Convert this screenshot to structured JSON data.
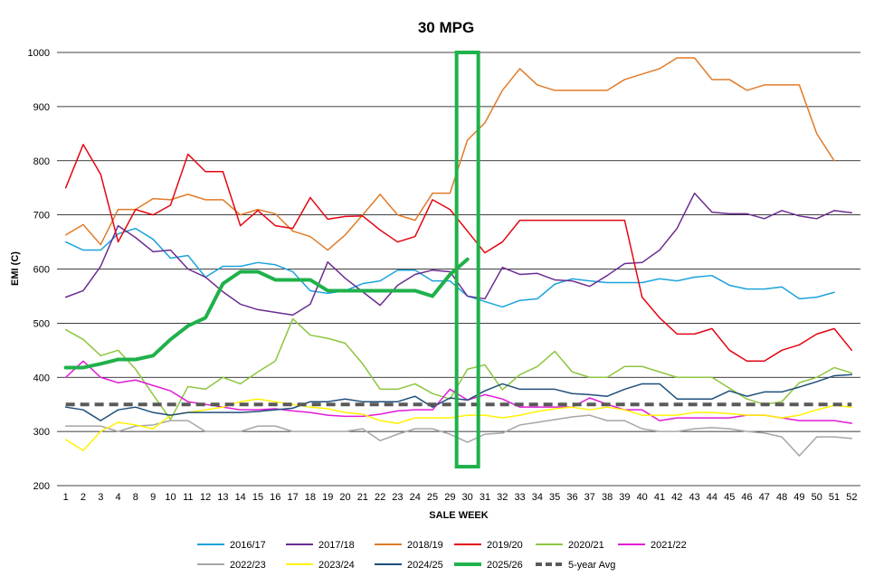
{
  "chart_data": {
    "type": "line",
    "title": "30 MPG",
    "xlabel": "SALE WEEK",
    "ylabel": "EMI (C)",
    "ylim": [
      200,
      1000
    ],
    "yticks": [
      200,
      300,
      400,
      500,
      600,
      700,
      800,
      900,
      1000
    ],
    "grid": true,
    "legend_position": "bottom",
    "categories": [
      "1",
      "2",
      "3",
      "4",
      "8",
      "9",
      "10",
      "11",
      "12",
      "13",
      "14",
      "15",
      "16",
      "17",
      "18",
      "19",
      "20",
      "21",
      "22",
      "23",
      "24",
      "25",
      "29",
      "30",
      "31",
      "32",
      "33",
      "34",
      "35",
      "36",
      "37",
      "38",
      "39",
      "40",
      "41",
      "42",
      "43",
      "44",
      "45",
      "46",
      "47",
      "48",
      "49",
      "50",
      "51",
      "52"
    ],
    "highlight": {
      "category": "30",
      "y_range": [
        235,
        1000
      ],
      "color": "#1FB14B"
    },
    "series": [
      {
        "name": "2016/17",
        "color": "#1BA3DB",
        "width": 1.5,
        "dash": "",
        "values": [
          650,
          635,
          635,
          665,
          675,
          655,
          620,
          625,
          585,
          605,
          605,
          612,
          608,
          595,
          560,
          555,
          560,
          573,
          578,
          598,
          598,
          578,
          578,
          550,
          540,
          530,
          542,
          545,
          572,
          582,
          578,
          575,
          575,
          575,
          582,
          578,
          585,
          588,
          570,
          563,
          563,
          567,
          545,
          548,
          557,
          null
        ]
      },
      {
        "name": "2017/18",
        "color": "#6B2C91",
        "width": 1.5,
        "dash": "",
        "values": [
          548,
          560,
          605,
          680,
          658,
          632,
          635,
          600,
          585,
          558,
          535,
          525,
          520,
          515,
          535,
          613,
          583,
          558,
          533,
          570,
          590,
          598,
          595,
          550,
          545,
          603,
          590,
          592,
          580,
          578,
          568,
          588,
          610,
          612,
          635,
          675,
          740,
          705,
          702,
          702,
          693,
          708,
          698,
          693,
          708,
          704
        ]
      },
      {
        "name": "2018/19",
        "color": "#E07B28",
        "width": 1.5,
        "dash": "",
        "values": [
          663,
          682,
          645,
          710,
          710,
          730,
          728,
          738,
          728,
          728,
          700,
          710,
          702,
          670,
          660,
          635,
          663,
          700,
          738,
          700,
          690,
          740,
          740,
          838,
          870,
          930,
          970,
          940,
          930,
          930,
          930,
          930,
          950,
          960,
          970,
          990,
          990,
          950,
          950,
          930,
          940,
          940,
          940,
          850,
          800,
          null
        ]
      },
      {
        "name": "2019/20",
        "color": "#E30613",
        "width": 1.5,
        "dash": "",
        "values": [
          750,
          830,
          775,
          650,
          710,
          700,
          718,
          812,
          780,
          780,
          680,
          708,
          680,
          675,
          732,
          692,
          697,
          698,
          672,
          650,
          660,
          728,
          710,
          670,
          630,
          650,
          690,
          690,
          690,
          690,
          690,
          690,
          690,
          548,
          510,
          480,
          480,
          490,
          450,
          430,
          430,
          450,
          460,
          480,
          490,
          450
        ]
      },
      {
        "name": "2020/21",
        "color": "#8DC63F",
        "width": 1.5,
        "dash": "",
        "values": [
          488,
          470,
          440,
          450,
          415,
          368,
          322,
          383,
          378,
          400,
          388,
          410,
          430,
          508,
          478,
          472,
          463,
          425,
          378,
          378,
          388,
          370,
          360,
          415,
          423,
          377,
          405,
          420,
          448,
          410,
          400,
          400,
          420,
          420,
          410,
          400,
          400,
          400,
          380,
          360,
          350,
          355,
          390,
          400,
          418,
          408
        ]
      },
      {
        "name": "2021/22",
        "color": "#E11BD6",
        "width": 1.5,
        "dash": "",
        "values": [
          400,
          430,
          400,
          390,
          395,
          385,
          375,
          355,
          350,
          345,
          340,
          340,
          342,
          338,
          335,
          330,
          328,
          328,
          332,
          338,
          340,
          340,
          378,
          358,
          368,
          360,
          345,
          345,
          345,
          345,
          362,
          350,
          340,
          340,
          320,
          325,
          325,
          325,
          325,
          330,
          330,
          325,
          320,
          320,
          320,
          315
        ]
      },
      {
        "name": "2022/23",
        "color": "#A6A6A6",
        "width": 1.5,
        "dash": "",
        "values": [
          310,
          310,
          310,
          300,
          310,
          312,
          320,
          320,
          300,
          300,
          300,
          310,
          310,
          300,
          300,
          300,
          300,
          305,
          283,
          295,
          305,
          305,
          295,
          280,
          295,
          297,
          312,
          317,
          322,
          327,
          330,
          320,
          320,
          305,
          300,
          300,
          305,
          307,
          305,
          300,
          297,
          290,
          255,
          290,
          290,
          287
        ]
      },
      {
        "name": "2023/24",
        "color": "#FFF200",
        "width": 1.5,
        "dash": "",
        "values": [
          285,
          265,
          300,
          317,
          312,
          305,
          330,
          335,
          340,
          345,
          355,
          360,
          355,
          350,
          345,
          342,
          335,
          332,
          320,
          315,
          325,
          325,
          325,
          330,
          330,
          325,
          330,
          337,
          342,
          345,
          340,
          345,
          340,
          330,
          330,
          330,
          335,
          335,
          333,
          330,
          330,
          325,
          330,
          340,
          348,
          345
        ]
      },
      {
        "name": "2024/25",
        "color": "#1F4E79",
        "width": 1.5,
        "dash": "",
        "values": [
          345,
          340,
          320,
          340,
          345,
          335,
          330,
          335,
          335,
          335,
          335,
          337,
          340,
          343,
          355,
          355,
          360,
          355,
          355,
          355,
          365,
          345,
          362,
          358,
          375,
          388,
          378,
          378,
          378,
          370,
          368,
          365,
          378,
          388,
          388,
          360,
          360,
          360,
          375,
          365,
          373,
          373,
          382,
          392,
          403,
          405
        ]
      },
      {
        "name": "2025/26",
        "color": "#1FB14B",
        "width": 4,
        "dash": "",
        "values": [
          418,
          418,
          425,
          433,
          433,
          440,
          470,
          495,
          510,
          573,
          595,
          595,
          580,
          580,
          580,
          560,
          560,
          560,
          560,
          560,
          560,
          550,
          590,
          618,
          null,
          null,
          null,
          null,
          null,
          null,
          null,
          null,
          null,
          null,
          null,
          null,
          null,
          null,
          null,
          null,
          null,
          null,
          null,
          null,
          null,
          null
        ]
      },
      {
        "name": "5-year Avg",
        "color": "#595959",
        "width": 4,
        "dash": "10,6",
        "values": [
          350,
          350,
          350,
          350,
          350,
          350,
          350,
          350,
          350,
          350,
          350,
          350,
          350,
          350,
          350,
          350,
          350,
          350,
          350,
          350,
          350,
          350,
          350,
          350,
          350,
          350,
          350,
          350,
          350,
          350,
          350,
          350,
          350,
          350,
          350,
          350,
          350,
          350,
          350,
          350,
          350,
          350,
          350,
          350,
          350,
          350
        ]
      }
    ]
  }
}
